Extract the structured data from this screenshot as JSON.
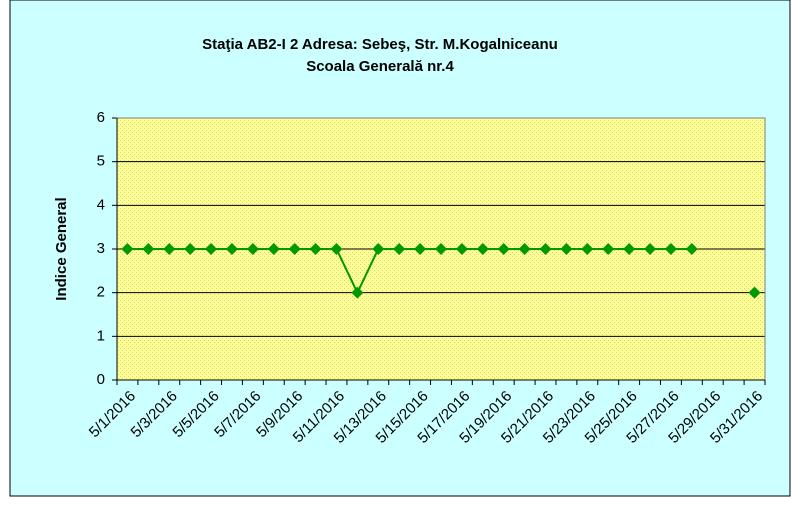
{
  "chart_data": {
    "type": "line",
    "title": [
      "Staţia AB2-I 2  Adresa: Sebeş,  Str. M.Kogalniceanu",
      "Scoala Generală nr.4"
    ],
    "y_label": "Indice General",
    "categories": [
      "5/1/2016",
      null,
      "5/3/2016",
      null,
      "5/5/2016",
      null,
      "5/7/2016",
      null,
      "5/9/2016",
      null,
      "5/11/2016",
      null,
      "5/13/2016",
      null,
      "5/15/2016",
      null,
      "5/17/2016",
      null,
      "5/19/2016",
      null,
      "5/21/2016",
      null,
      "5/23/2016",
      null,
      "5/25/2016",
      null,
      "5/27/2016",
      null,
      "5/29/2016",
      null,
      "5/31/2016"
    ],
    "series": [
      {
        "color": "#009900",
        "values": [
          3,
          3,
          3,
          3,
          3,
          3,
          3,
          3,
          3,
          3,
          3,
          2,
          3,
          3,
          3,
          3,
          3,
          3,
          3,
          3,
          3,
          3,
          3,
          3,
          3,
          3,
          3,
          3,
          null,
          null,
          2
        ]
      }
    ],
    "ylim": [
      0,
      6
    ],
    "yticks": [
      0,
      1,
      2,
      3,
      4,
      5,
      6
    ],
    "grid": true,
    "background": "#ccffff",
    "plot_background": "#ffff99"
  }
}
